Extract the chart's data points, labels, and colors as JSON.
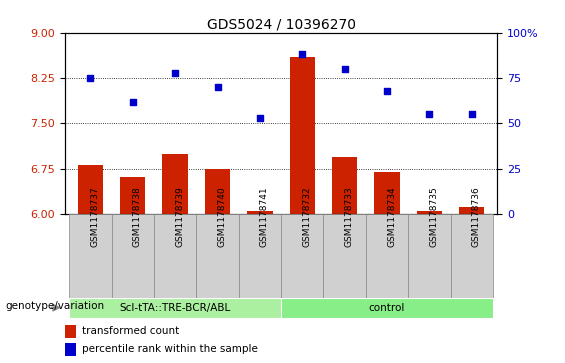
{
  "title": "GDS5024 / 10396270",
  "samples": [
    "GSM1178737",
    "GSM1178738",
    "GSM1178739",
    "GSM1178740",
    "GSM1178741",
    "GSM1178732",
    "GSM1178733",
    "GSM1178734",
    "GSM1178735",
    "GSM1178736"
  ],
  "bar_values": [
    6.82,
    6.62,
    7.0,
    6.75,
    6.05,
    8.6,
    6.95,
    6.7,
    6.06,
    6.12
  ],
  "dot_values": [
    75,
    62,
    78,
    70,
    53,
    88,
    80,
    68,
    55,
    55
  ],
  "bar_color": "#cc2200",
  "dot_color": "#0000cc",
  "ylim_left": [
    6,
    9
  ],
  "ylim_right": [
    0,
    100
  ],
  "yticks_left": [
    6,
    6.75,
    7.5,
    8.25,
    9
  ],
  "yticks_right": [
    0,
    25,
    50,
    75,
    100
  ],
  "ytick_labels_right": [
    "0",
    "25",
    "50",
    "75",
    "100%"
  ],
  "group1_label": "Scl-tTA::TRE-BCR/ABL",
  "group2_label": "control",
  "group1_count": 5,
  "group2_count": 5,
  "genotype_label": "genotype/variation",
  "legend_bar_label": "transformed count",
  "legend_dot_label": "percentile rank within the sample",
  "group1_color": "#aaf0a0",
  "group2_color": "#88ee88",
  "bg_color": "#d0d0d0",
  "plot_bg": "#ffffff",
  "grid_color": "#000000",
  "title_fontsize": 10,
  "tick_fontsize": 8,
  "label_fontsize": 8
}
